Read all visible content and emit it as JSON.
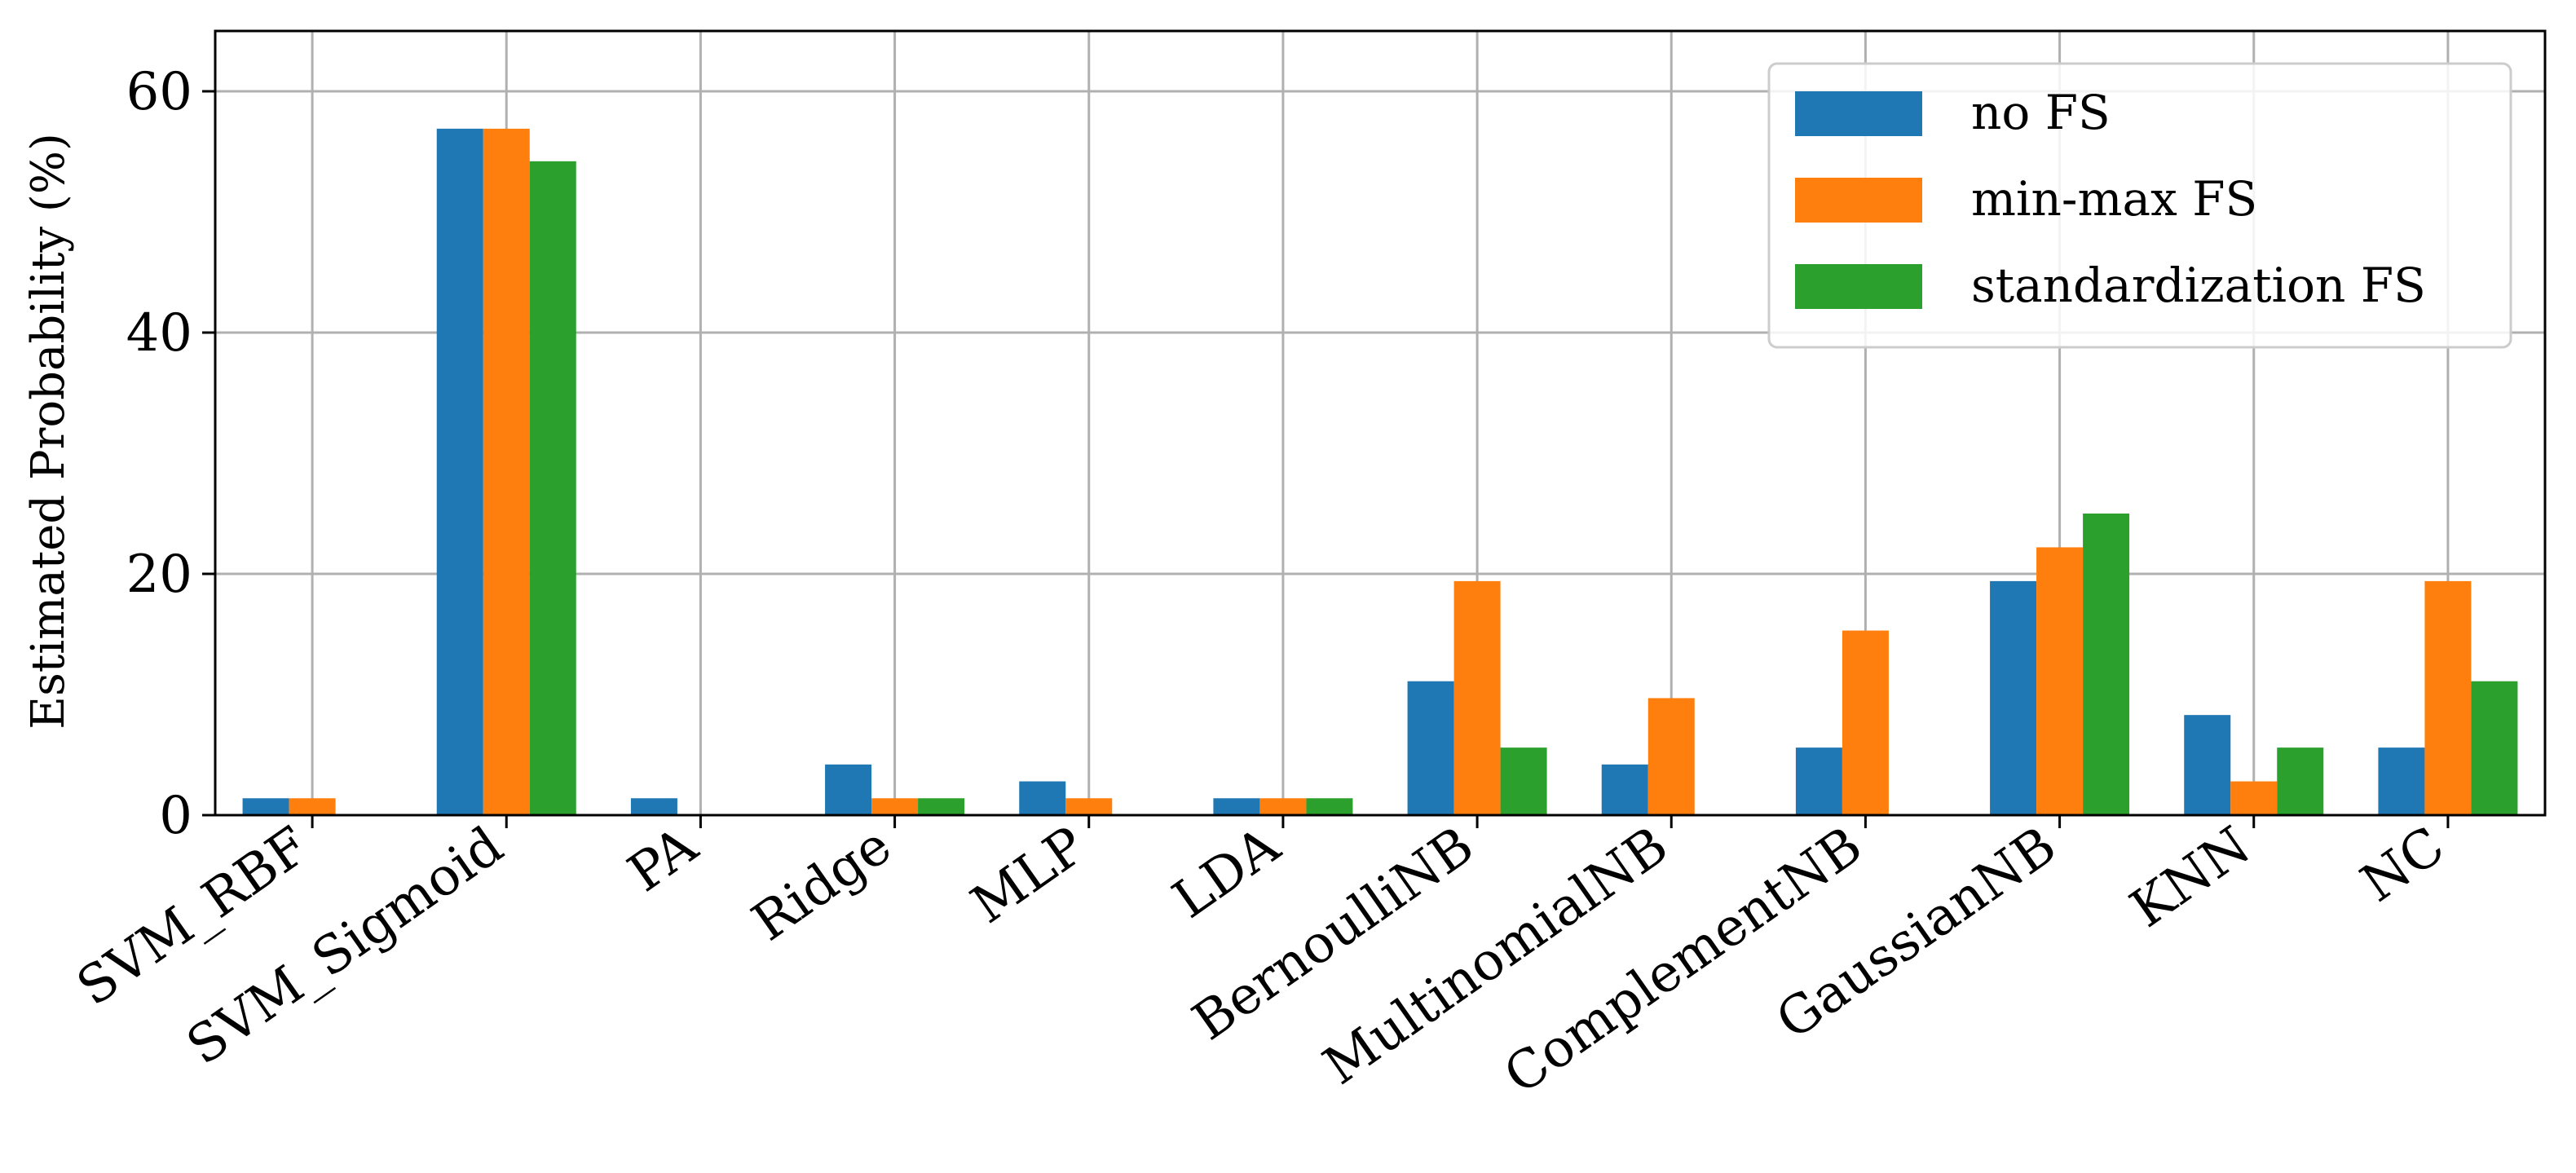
{
  "chart_data": {
    "type": "bar",
    "title": "",
    "xlabel": "",
    "ylabel": "Estimated Probability (%)",
    "categories": [
      "SVM_RBF",
      "SVM_Sigmoid",
      "PA",
      "Ridge",
      "MLP",
      "LDA",
      "BernoulliNB",
      "MultinomialNB",
      "ComplementNB",
      "GaussianNB",
      "KNN",
      "NC"
    ],
    "series": [
      {
        "name": "no FS",
        "color": "#1f77b4",
        "values": [
          1.4,
          56.9,
          1.4,
          4.2,
          2.8,
          1.4,
          11.1,
          4.2,
          5.6,
          19.4,
          8.3,
          5.6
        ]
      },
      {
        "name": "min-max FS",
        "color": "#ff7f0e",
        "values": [
          1.4,
          56.9,
          0,
          1.4,
          1.4,
          1.4,
          19.4,
          9.7,
          15.3,
          22.2,
          2.8,
          19.4
        ]
      },
      {
        "name": "standardization FS",
        "color": "#2ca02c",
        "values": [
          0,
          54.2,
          0,
          1.4,
          0,
          1.4,
          5.6,
          0,
          0,
          25.0,
          5.6,
          11.1
        ]
      }
    ],
    "ylim": [
      0,
      65
    ],
    "yticks": [
      0,
      20,
      40,
      60
    ],
    "grid": true,
    "legend_position": "top-right"
  }
}
